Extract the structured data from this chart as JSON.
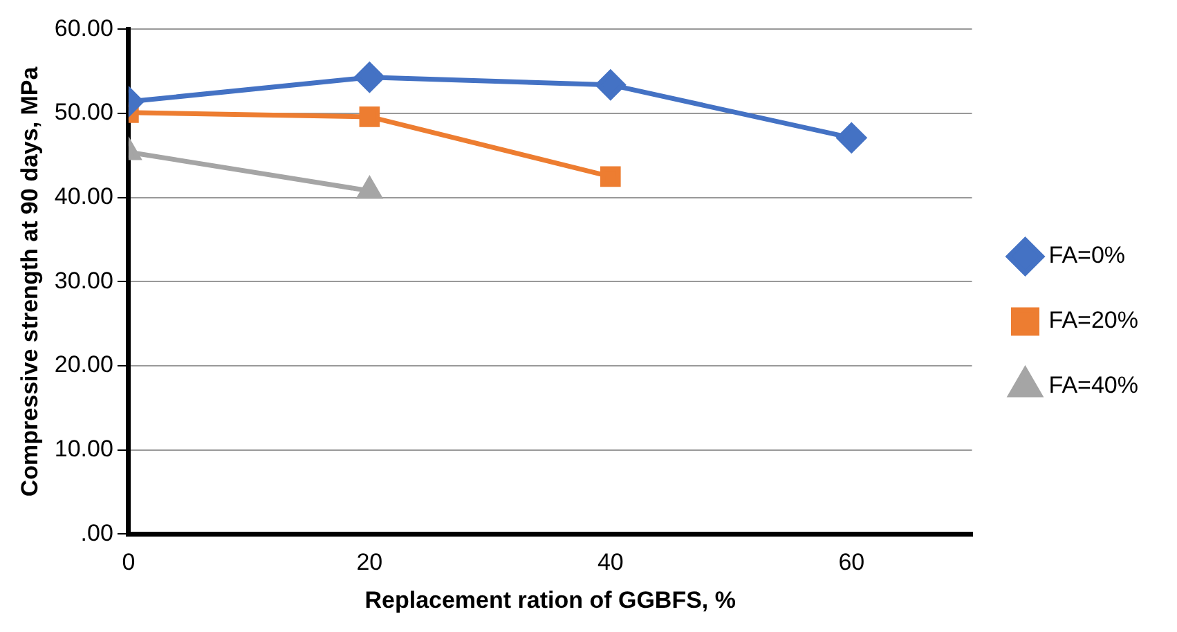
{
  "chart_data": {
    "type": "line",
    "xlabel": "Replacement ration of GGBFS, %",
    "ylabel": "Compressive strength at 90 days, MPa",
    "series": [
      {
        "name": "FA=0%",
        "color": "#4472c4",
        "marker": "diamond",
        "x": [
          0,
          20,
          40,
          60
        ],
        "values": [
          51.4,
          54.3,
          53.4,
          47.1
        ]
      },
      {
        "name": "FA=20%",
        "color": "#ed7d31",
        "marker": "square",
        "x": [
          0,
          20,
          40
        ],
        "values": [
          50.1,
          49.6,
          42.5
        ]
      },
      {
        "name": "FA=40%",
        "color": "#a5a5a5",
        "marker": "triangle",
        "x": [
          0,
          20
        ],
        "values": [
          45.4,
          40.8
        ]
      }
    ],
    "xlim": [
      0,
      70
    ],
    "xticks": [
      0,
      20,
      40,
      60
    ],
    "ylim": [
      0,
      60
    ],
    "yticks": [
      {
        "value": 0,
        "label": ".00"
      },
      {
        "value": 10,
        "label": "10.00"
      },
      {
        "value": 20,
        "label": "20.00"
      },
      {
        "value": 30,
        "label": "30.00"
      },
      {
        "value": 40,
        "label": "40.00"
      },
      {
        "value": 50,
        "label": "50.00"
      },
      {
        "value": 60,
        "label": "60.00"
      }
    ],
    "grid": "y",
    "legend": "right"
  }
}
